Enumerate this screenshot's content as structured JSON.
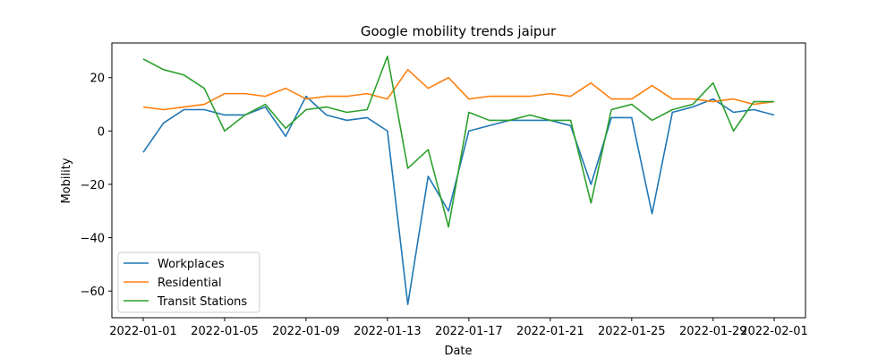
{
  "chart_data": {
    "type": "line",
    "title": "Google mobility trends jaipur",
    "xlabel": "Date",
    "ylabel": "Mobility",
    "x": [
      "2022-01-01",
      "2022-01-02",
      "2022-01-03",
      "2022-01-04",
      "2022-01-05",
      "2022-01-06",
      "2022-01-07",
      "2022-01-08",
      "2022-01-09",
      "2022-01-10",
      "2022-01-11",
      "2022-01-12",
      "2022-01-13",
      "2022-01-14",
      "2022-01-15",
      "2022-01-16",
      "2022-01-17",
      "2022-01-18",
      "2022-01-19",
      "2022-01-20",
      "2022-01-21",
      "2022-01-22",
      "2022-01-23",
      "2022-01-24",
      "2022-01-25",
      "2022-01-26",
      "2022-01-27",
      "2022-01-28",
      "2022-01-29",
      "2022-01-30",
      "2022-01-31",
      "2022-02-01"
    ],
    "xticks": [
      "2022-01-01",
      "2022-01-05",
      "2022-01-09",
      "2022-01-13",
      "2022-01-17",
      "2022-01-21",
      "2022-01-25",
      "2022-01-29",
      "2022-02-01"
    ],
    "yticks": [
      -60,
      -40,
      -20,
      0,
      20
    ],
    "ylim": [
      -70,
      33
    ],
    "grid": false,
    "legend_position": "lower-left",
    "series": [
      {
        "name": "Workplaces",
        "color": "#1f77b4",
        "values": [
          -8,
          3,
          8,
          8,
          6,
          6,
          9,
          -2,
          13,
          6,
          4,
          5,
          0,
          -65,
          -17,
          -30,
          0,
          2,
          4,
          4,
          4,
          2,
          -20,
          5,
          5,
          -31,
          7,
          9,
          12,
          7,
          8,
          6
        ]
      },
      {
        "name": "Residential",
        "color": "#ff7f0e",
        "values": [
          9,
          8,
          9,
          10,
          14,
          14,
          13,
          16,
          12,
          13,
          13,
          14,
          12,
          23,
          16,
          20,
          12,
          13,
          13,
          13,
          14,
          13,
          18,
          12,
          12,
          17,
          12,
          12,
          11,
          12,
          10,
          11
        ]
      },
      {
        "name": "Transit Stations",
        "color": "#2ca02c",
        "values": [
          27,
          23,
          21,
          16,
          0,
          6,
          10,
          1,
          8,
          9,
          7,
          8,
          28,
          -14,
          -7,
          -36,
          7,
          4,
          4,
          6,
          4,
          4,
          -27,
          8,
          10,
          4,
          8,
          10,
          18,
          0,
          11,
          11
        ]
      }
    ]
  }
}
